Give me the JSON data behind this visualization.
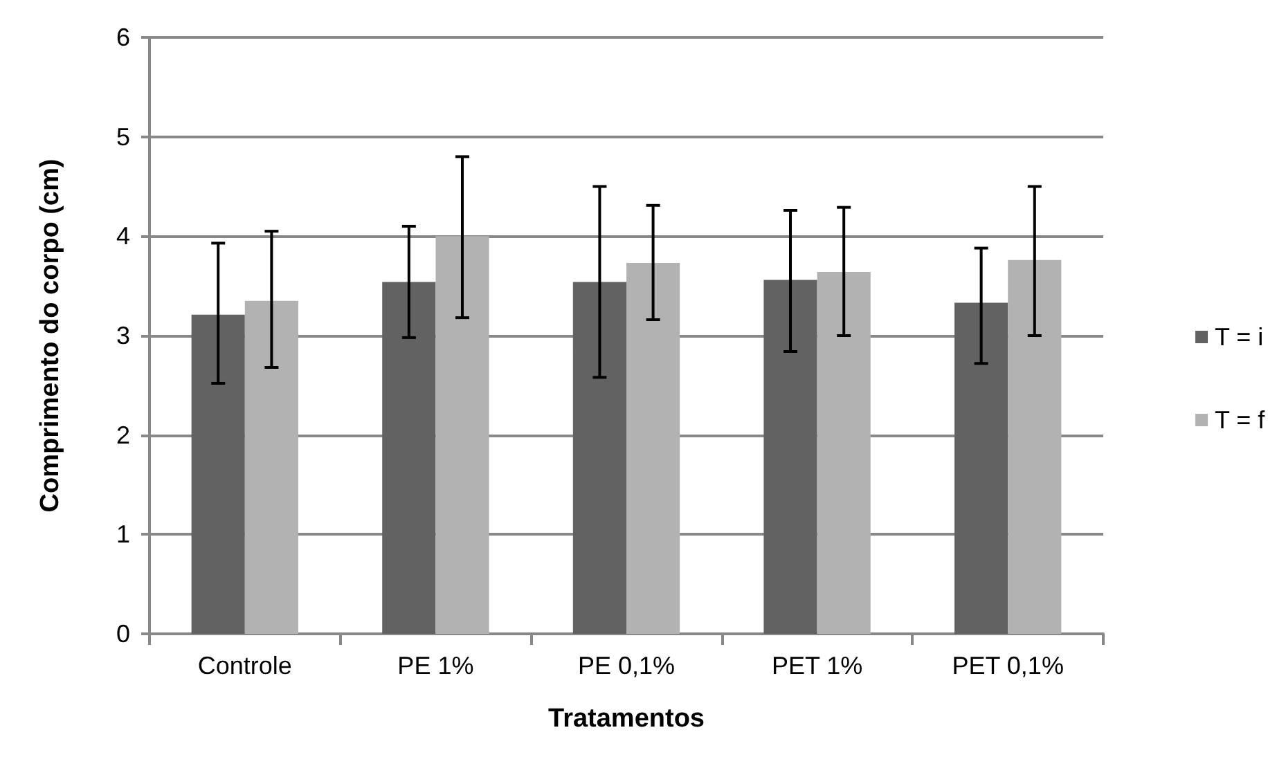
{
  "chart_data": {
    "type": "bar",
    "xlabel": "Tratamentos",
    "ylabel": "Comprimento do corpo (cm)",
    "categories": [
      "Controle",
      "PE 1%",
      "PE 0,1%",
      "PET 1%",
      "PET 0,1%"
    ],
    "series": [
      {
        "name": "T = i",
        "color": "#626262",
        "values": [
          3.21,
          3.54,
          3.54,
          3.56,
          3.33
        ],
        "errors": [
          [
            2.52,
            3.93
          ],
          [
            2.98,
            4.1
          ],
          [
            2.58,
            4.5
          ],
          [
            2.84,
            4.26
          ],
          [
            2.72,
            3.88
          ]
        ]
      },
      {
        "name": "T = f",
        "color": "#b2b2b2",
        "values": [
          3.35,
          4.0,
          3.73,
          3.64,
          3.76
        ],
        "errors": [
          [
            2.68,
            4.05
          ],
          [
            3.18,
            4.8
          ],
          [
            3.16,
            4.31
          ],
          [
            3.0,
            4.29
          ],
          [
            3.0,
            4.5
          ]
        ]
      }
    ],
    "ylim": [
      0,
      6
    ],
    "yticks": [
      0,
      1,
      2,
      3,
      4,
      5,
      6
    ],
    "grid": "y",
    "legend": "right"
  }
}
